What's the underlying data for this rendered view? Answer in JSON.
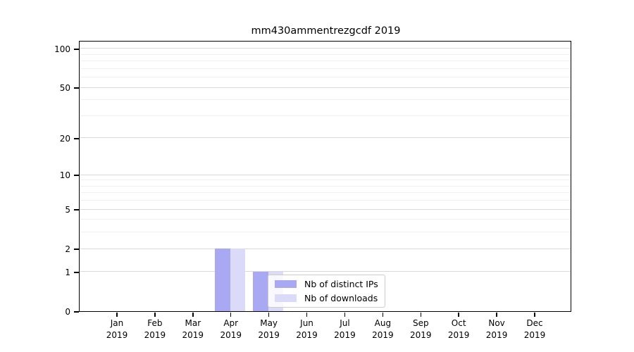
{
  "chart_data": {
    "type": "bar",
    "title": "mm430ammentrezgcdf 2019",
    "categories": [
      "Jan",
      "Feb",
      "Mar",
      "Apr",
      "May",
      "Jun",
      "Jul",
      "Aug",
      "Sep",
      "Oct",
      "Nov",
      "Dec"
    ],
    "x_tick_year": "2019",
    "series": [
      {
        "name": "Nb of distinct IPs",
        "color": "#a9a9f3",
        "values": [
          0,
          0,
          0,
          2,
          1,
          0,
          0,
          0,
          0,
          0,
          0,
          0
        ]
      },
      {
        "name": "Nb of downloads",
        "color": "#dbdbf9",
        "values": [
          0,
          0,
          0,
          2,
          1,
          0,
          0,
          0,
          0,
          0,
          0,
          0
        ]
      }
    ],
    "xlabel": "",
    "ylabel": "",
    "yscale": "log1p",
    "ylim": [
      0,
      113
    ],
    "y_tick_labels": [
      0,
      1,
      2,
      5,
      10,
      20,
      50,
      100
    ],
    "y_minor_gridlines": [
      3,
      4,
      6,
      7,
      8,
      9,
      30,
      40,
      60,
      70,
      80,
      90
    ],
    "grid": true,
    "legend_position": "lower-center",
    "legend_frame_alpha": 0.8
  },
  "colors": {
    "bar_distinct_ips": "#a9a9f3",
    "bar_downloads": "#dbdbf9",
    "grid_major": "#d9d9d9",
    "grid_minor": "#f0f0f0",
    "spine": "#000000",
    "text": "#000000",
    "legend_border": "#cccccc"
  }
}
